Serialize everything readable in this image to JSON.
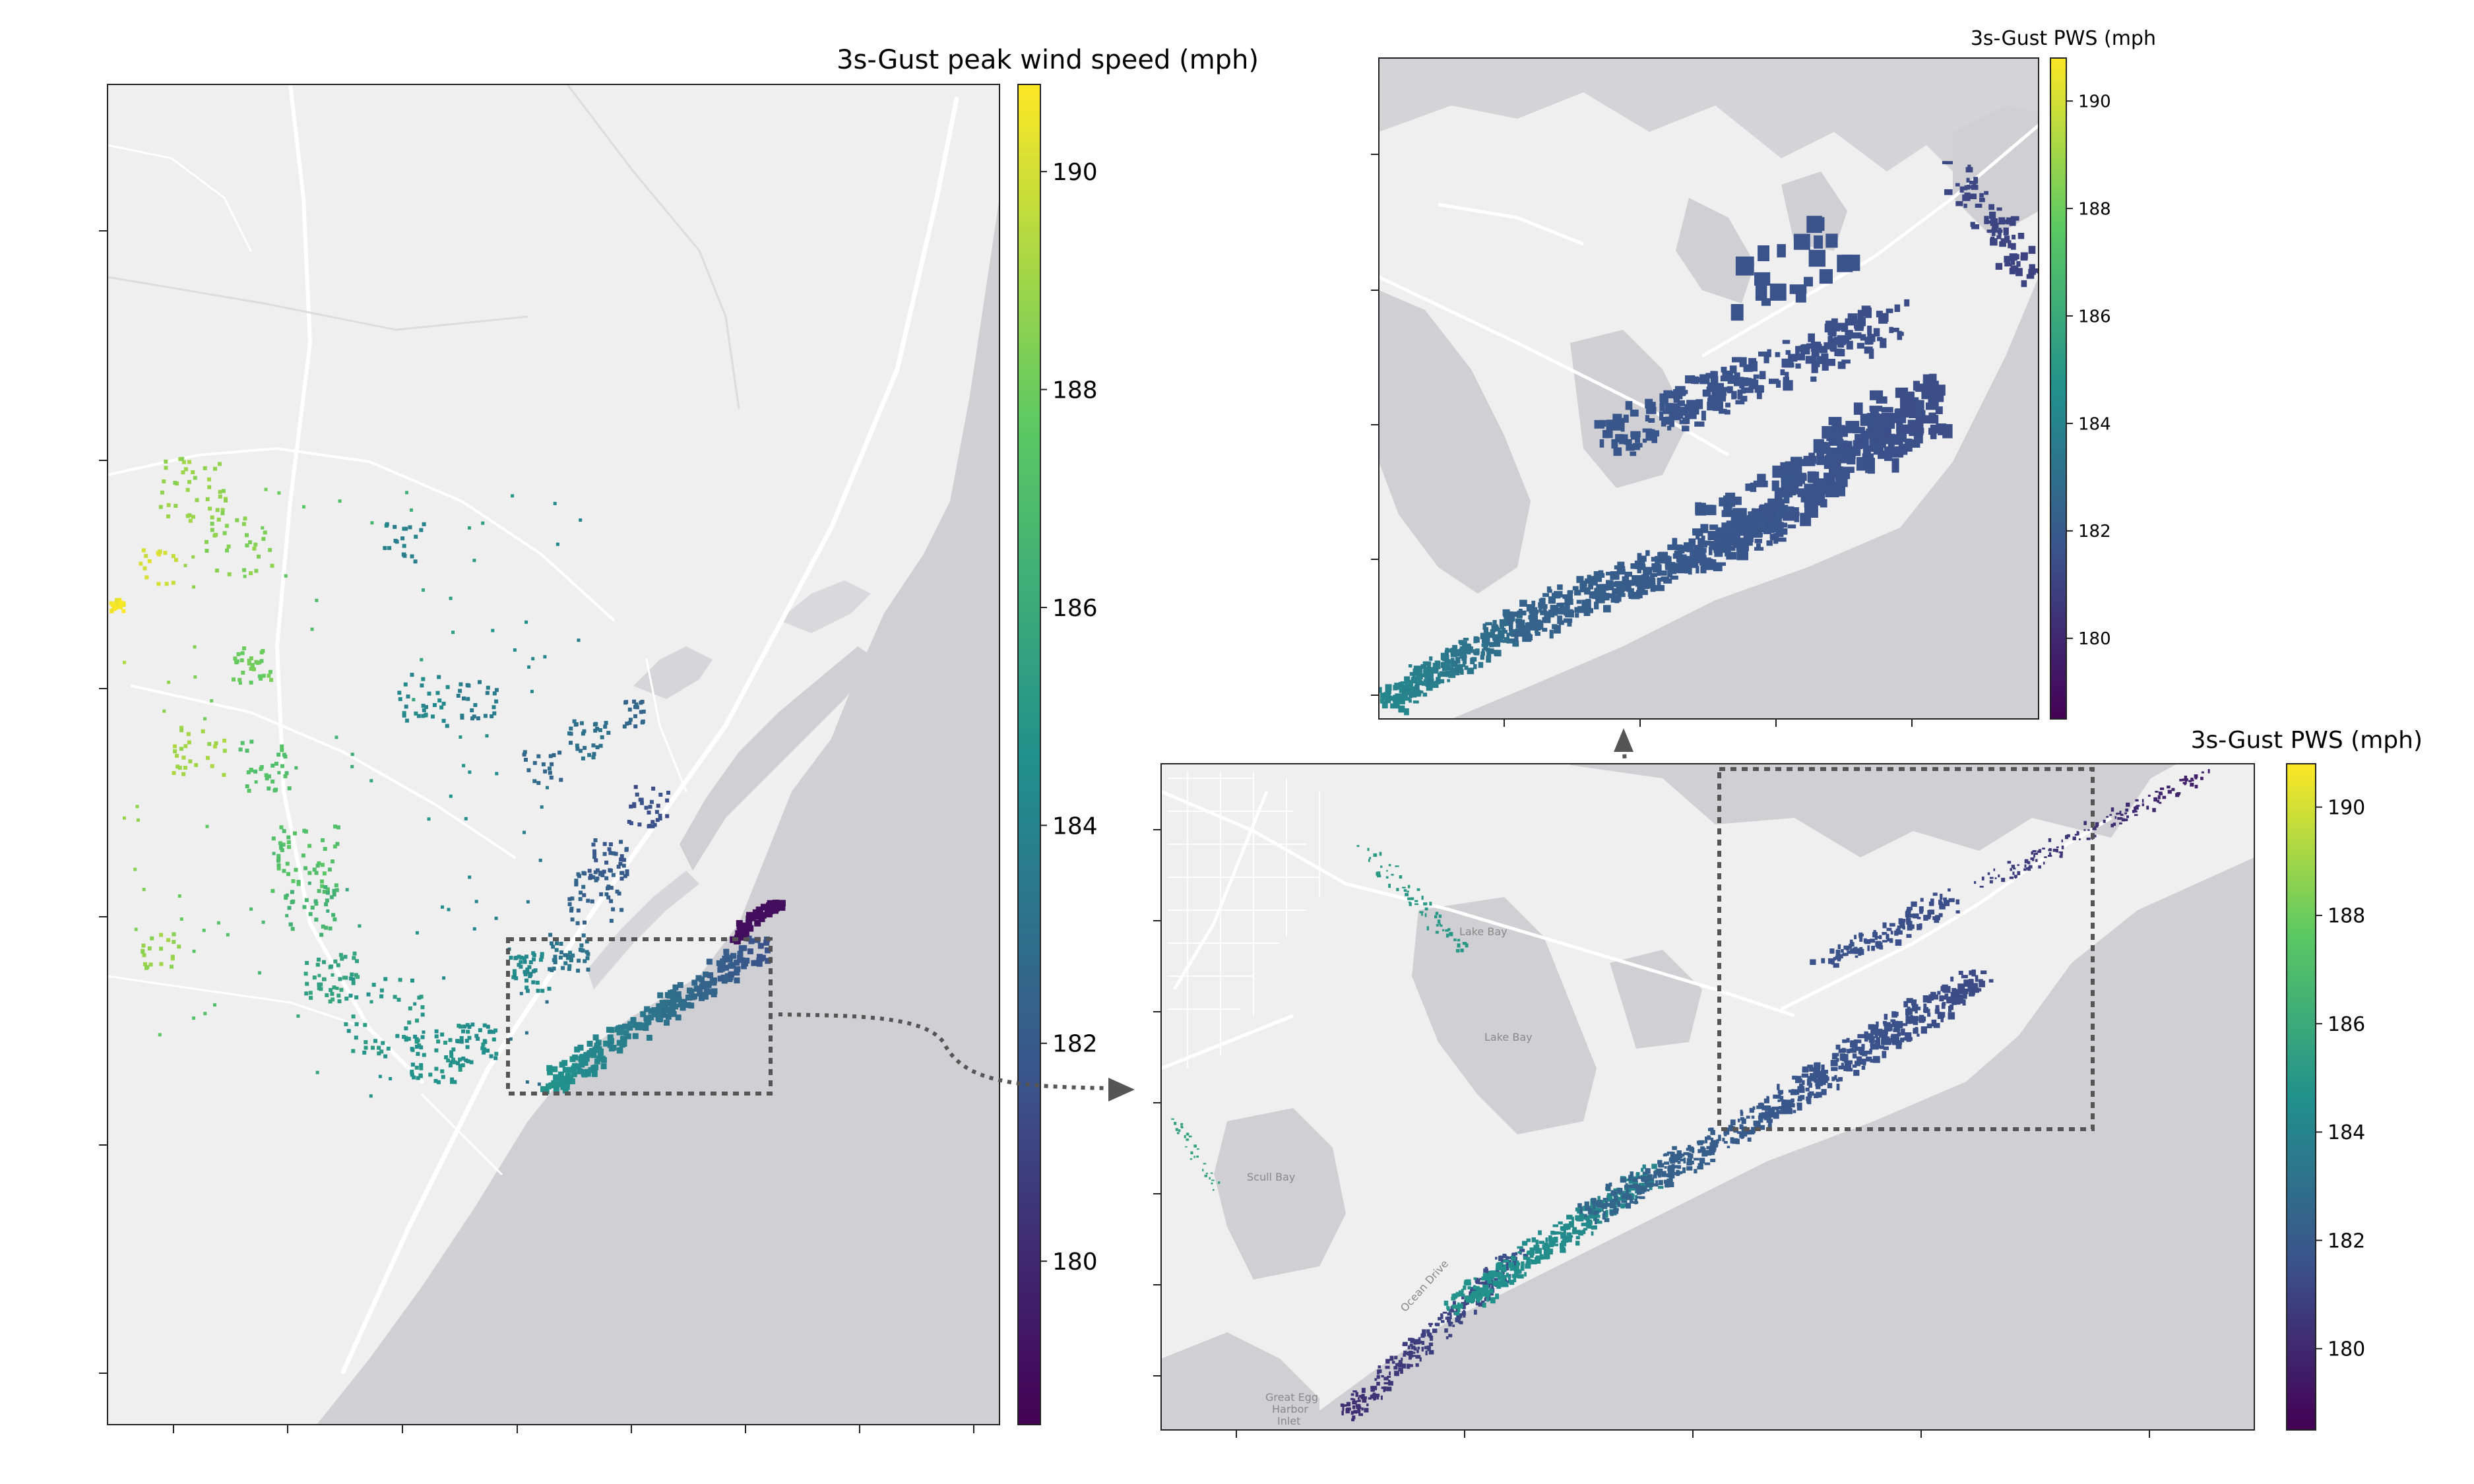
{
  "panels": {
    "main": {
      "colorbar_title": "3s-Gust peak wind speed (mph)",
      "colorbar_ticks": [
        "180",
        "182",
        "184",
        "186",
        "188",
        "190"
      ]
    },
    "zoom_top": {
      "colorbar_title": "3s-Gust PWS (mph",
      "colorbar_ticks": [
        "180",
        "182",
        "184",
        "186",
        "188",
        "190"
      ]
    },
    "zoom_bottom": {
      "colorbar_title": "3s-Gust PWS (mph)",
      "colorbar_ticks": [
        "180",
        "182",
        "184",
        "186",
        "188",
        "190"
      ],
      "place_labels": [
        "Lake Bay",
        "Lake Bay",
        "Scull Bay",
        "Great Egg",
        "Harbor",
        "Inlet",
        "Ocean Drive"
      ]
    }
  },
  "colormap": {
    "name": "viridis",
    "vmin": 178.5,
    "vmax": 190.8,
    "stops": [
      "#440154",
      "#3b528b",
      "#21918c",
      "#5ec962",
      "#fde725"
    ]
  },
  "colors": {
    "land": "#efefef",
    "water": "#d0d0d4",
    "road": "#ffffff",
    "frame": "#222222",
    "zoom_box": "#555555"
  }
}
